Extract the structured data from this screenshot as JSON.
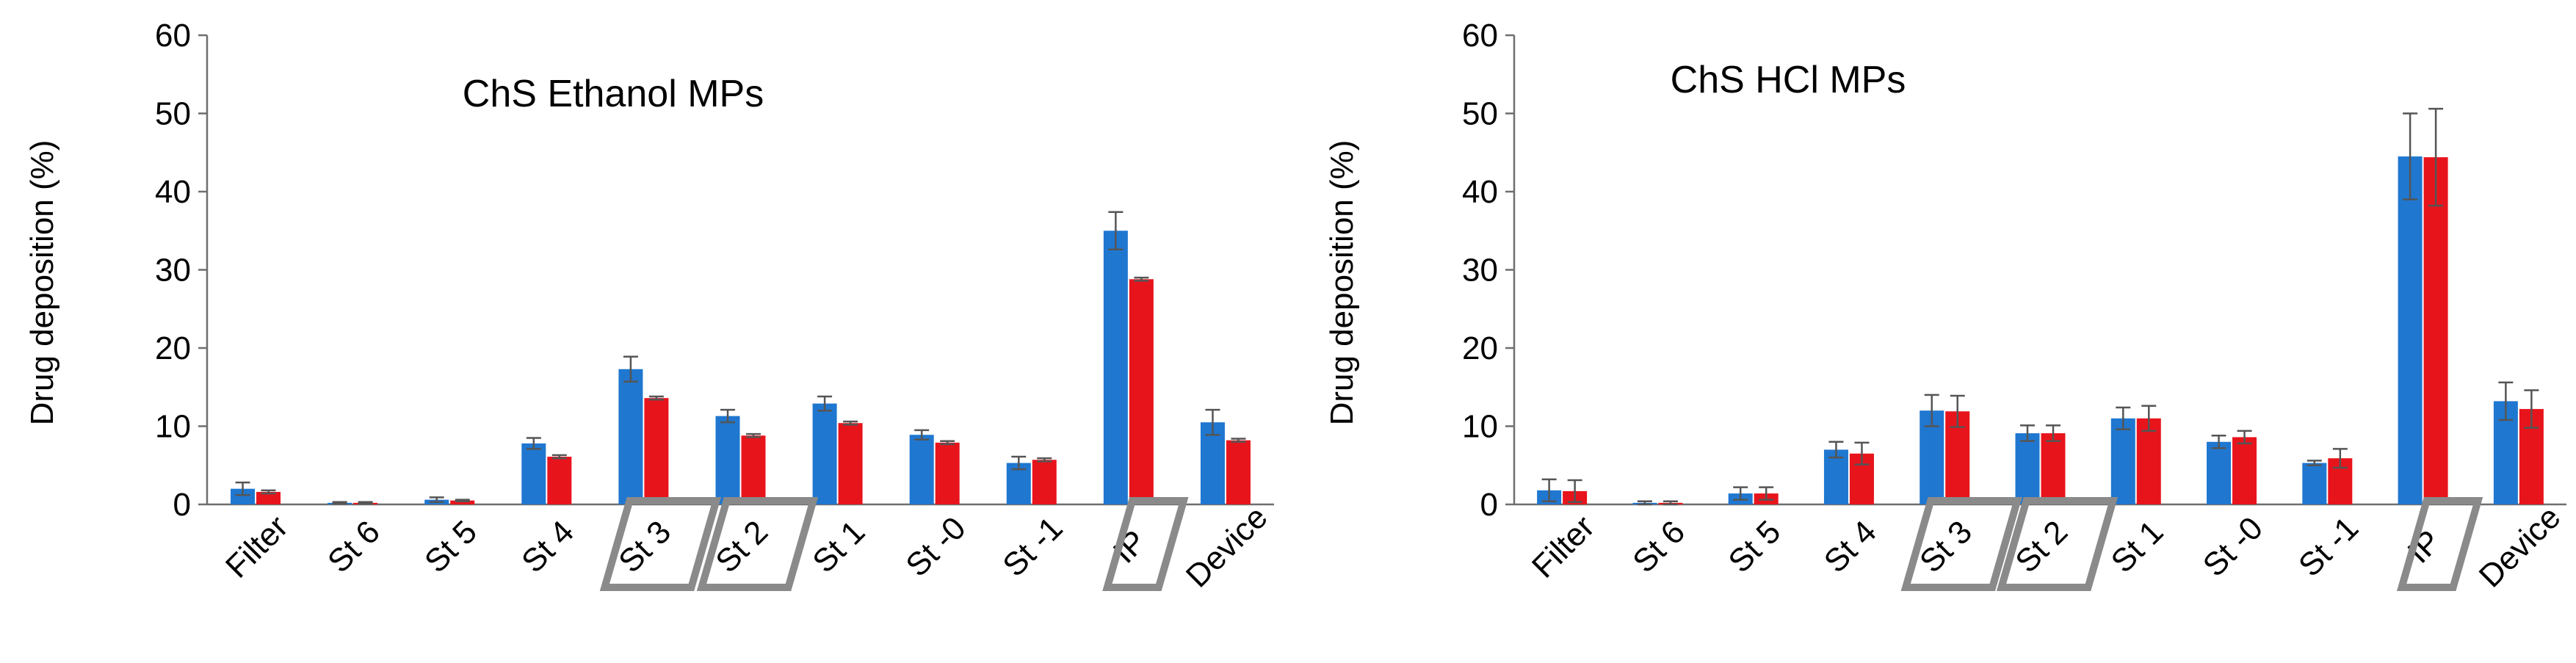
{
  "chart_data": [
    {
      "type": "bar",
      "title": "ChS Ethanol MPs",
      "ylabel": "Drug deposition (%)",
      "xlabel": "",
      "ylim": [
        0,
        60
      ],
      "yticks": [
        "0",
        "10",
        "20",
        "30",
        "40",
        "50",
        "60"
      ],
      "grid": false,
      "legend": "none",
      "categories": [
        "Filter",
        "St 6",
        "St 5",
        "St 4",
        "St 3",
        "St 2",
        "St 1",
        "St -0",
        "St -1",
        "IP",
        "Device"
      ],
      "highlighted_categories": [
        "St 3",
        "St 2",
        "IP"
      ],
      "series": [
        {
          "color": "#1f77d0",
          "values": [
            2.0,
            0.2,
            0.6,
            7.8,
            17.3,
            11.3,
            12.9,
            8.9,
            5.3,
            35.0,
            10.5
          ],
          "errors": [
            0.8,
            0.1,
            0.3,
            0.7,
            1.6,
            0.8,
            0.9,
            0.6,
            0.8,
            2.4,
            1.6
          ]
        },
        {
          "color": "#e8141c",
          "values": [
            1.6,
            0.2,
            0.5,
            6.1,
            13.6,
            8.8,
            10.4,
            7.9,
            5.7,
            28.8,
            8.2
          ],
          "errors": [
            0.2,
            0.1,
            0.1,
            0.2,
            0.2,
            0.2,
            0.2,
            0.2,
            0.2,
            0.2,
            0.2
          ]
        }
      ]
    },
    {
      "type": "bar",
      "title": "ChS HCl MPs",
      "ylabel": "Drug deposition (%)",
      "xlabel": "",
      "ylim": [
        0,
        60
      ],
      "yticks": [
        "0",
        "10",
        "20",
        "30",
        "40",
        "50",
        "60"
      ],
      "grid": false,
      "legend": "none",
      "categories": [
        "Filter",
        "St 6",
        "St 5",
        "St 4",
        "St 3",
        "St 2",
        "St 1",
        "St -0",
        "St -1",
        "IP",
        "Device"
      ],
      "highlighted_categories": [
        "St 3",
        "St 2",
        "IP"
      ],
      "series": [
        {
          "color": "#1f77d0",
          "values": [
            1.8,
            0.2,
            1.4,
            7.0,
            12.0,
            9.1,
            11.0,
            8.0,
            5.3,
            44.5,
            13.2
          ],
          "errors": [
            1.4,
            0.2,
            0.8,
            1.0,
            2.0,
            1.0,
            1.4,
            0.8,
            0.3,
            5.5,
            2.4
          ]
        },
        {
          "color": "#e8141c",
          "values": [
            1.7,
            0.2,
            1.4,
            6.5,
            11.9,
            9.1,
            11.0,
            8.6,
            5.9,
            44.4,
            12.2
          ],
          "errors": [
            1.4,
            0.2,
            0.8,
            1.4,
            2.0,
            1.0,
            1.6,
            0.8,
            1.2,
            6.2,
            2.4
          ]
        }
      ]
    }
  ]
}
